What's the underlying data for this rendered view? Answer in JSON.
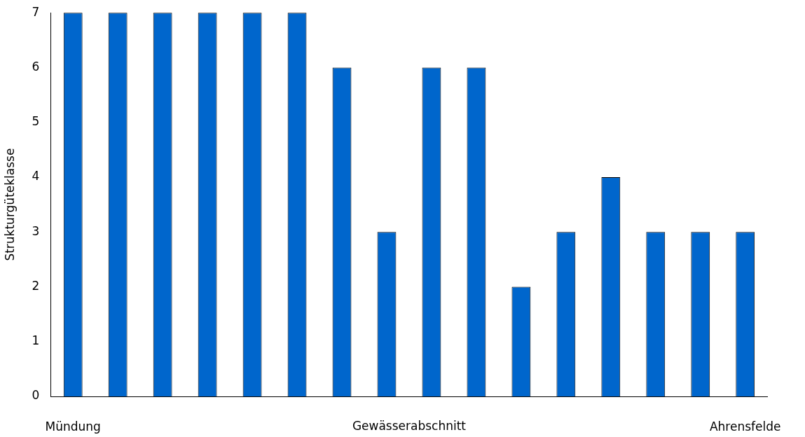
{
  "chart_data": {
    "type": "bar",
    "ylabel": "Strukturgüteklasse",
    "xlabel": "Gewässerabschnitt",
    "categories": [
      "Mündung",
      null,
      null,
      null,
      null,
      null,
      null,
      null,
      null,
      null,
      null,
      null,
      null,
      null,
      null,
      "Ahrensfelde"
    ],
    "values": [
      7,
      7,
      7,
      7,
      7,
      7,
      6,
      3,
      6,
      6,
      2,
      3,
      4,
      3,
      3,
      3
    ],
    "color": "#0066cc",
    "ylim": [
      0,
      7
    ],
    "yticks": [
      0,
      1,
      2,
      3,
      4,
      5,
      6,
      7
    ],
    "grid": false,
    "legend": false
  }
}
